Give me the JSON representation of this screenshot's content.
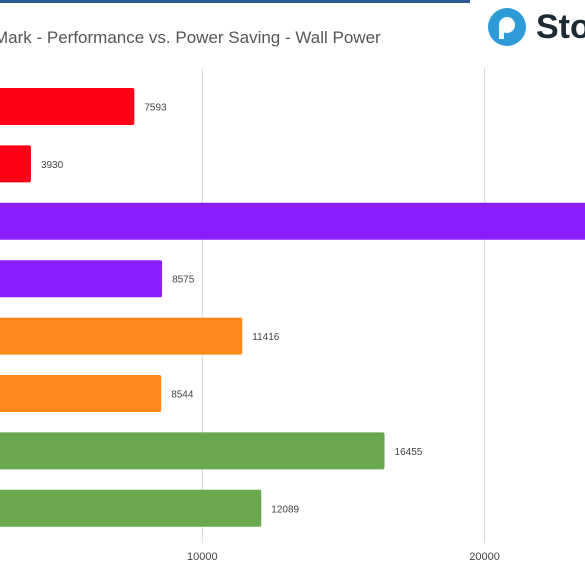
{
  "chart_data": {
    "type": "bar",
    "orientation": "horizontal",
    "title": "Mark - Performance vs. Power Saving - Wall Power",
    "values": [
      7593,
      3930,
      29800,
      8575,
      11416,
      8544,
      16455,
      12089
    ],
    "value_labels": [
      "7593",
      "3930",
      "",
      "8575",
      "11416",
      "8544",
      "16455",
      "12089"
    ],
    "bar_colors": [
      "#ff0016",
      "#ff0016",
      "#8b1dff",
      "#8b1dff",
      "#ff8a1c",
      "#ff8a1c",
      "#6aa84f",
      "#6aa84f"
    ],
    "x_ticks": [
      10000,
      20000
    ],
    "x_tick_labels": [
      "10000",
      "20000"
    ],
    "grid": true
  },
  "logo": {
    "text": "Sto",
    "icon": "storage-review-logo-icon",
    "color": "#2d9bd8"
  },
  "colors": {
    "grid": "#d9d9d9",
    "value_label": "#444444",
    "tick_label": "#444444",
    "title": "#555555"
  }
}
